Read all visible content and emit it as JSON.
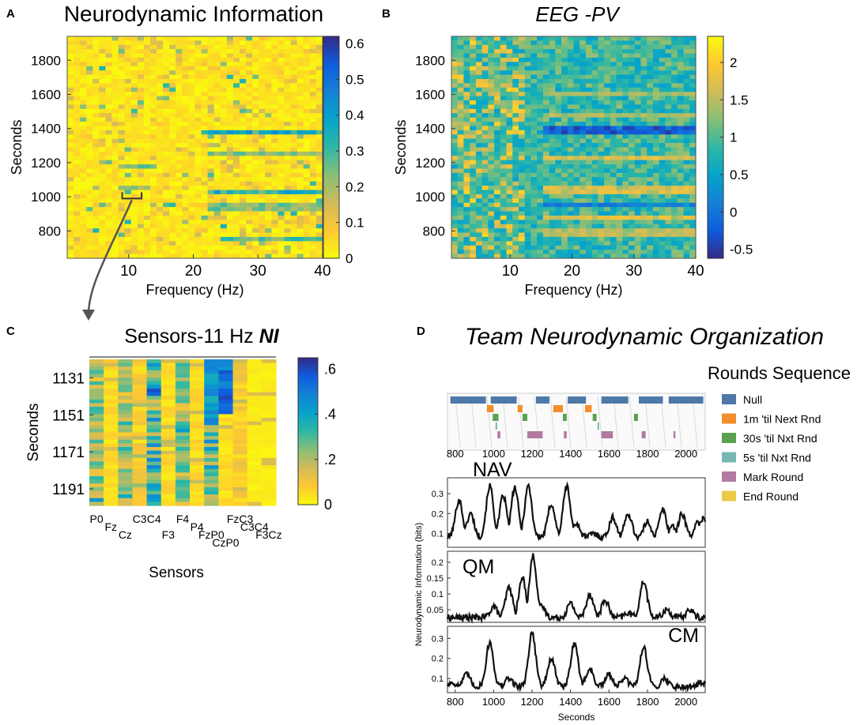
{
  "colors": {
    "parula": [
      "#352a87",
      "#0f5cdd",
      "#1481d6",
      "#06a4ca",
      "#2eb7a4",
      "#87bf77",
      "#d1bb59",
      "#fec832",
      "#f9fb0e"
    ],
    "trace": "#111111",
    "arrow": "#555555"
  },
  "chart_data": [
    {
      "id": "A",
      "panel_letter": "A",
      "type": "heatmap",
      "title": "Neurodynamic Information",
      "xlabel": "Frequency (Hz)",
      "ylabel": "Seconds",
      "xlim": [
        0.5,
        40
      ],
      "ylim": [
        640,
        1940
      ],
      "xticks": [
        10,
        20,
        30,
        40
      ],
      "yticks": [
        800,
        1000,
        1200,
        1400,
        1600,
        1800
      ],
      "colorbar": {
        "range": [
          0,
          0.62
        ],
        "reversed": true,
        "ticks": [
          0,
          0.1,
          0.2,
          0.3,
          0.4,
          0.5,
          0.6
        ],
        "tick_labels": [
          "0",
          "0.1",
          "0.2",
          "0.3",
          "0.4",
          "0.5",
          "0.6"
        ]
      },
      "bands": [
        {
          "y": 1375,
          "x_from": 22,
          "x_to": 40,
          "value": 0.45
        },
        {
          "y": 1255,
          "x_from": 22,
          "x_to": 40,
          "value": 0.28
        },
        {
          "y": 1020,
          "x_from": 22,
          "x_to": 40,
          "value": 0.42
        },
        {
          "y": 940,
          "x_from": 22,
          "x_to": 40,
          "value": 0.3
        },
        {
          "y": 760,
          "x_from": 24,
          "x_to": 40,
          "value": 0.35
        },
        {
          "y": 1185,
          "x_from": 8,
          "x_to": 14,
          "value": 0.3
        },
        {
          "y": 1060,
          "x_from": 8,
          "x_to": 13,
          "value": 0.28
        }
      ],
      "annotation": {
        "bracket_x": [
          9,
          12
        ],
        "bracket_y": 990
      }
    },
    {
      "id": "B",
      "panel_letter": "B",
      "type": "heatmap",
      "title": "EEG -PV",
      "xlabel": "Frequency (Hz)",
      "ylabel": "Seconds",
      "xlim": [
        0.5,
        40
      ],
      "ylim": [
        640,
        1940
      ],
      "xticks": [
        10,
        20,
        30,
        40
      ],
      "yticks": [
        800,
        1000,
        1200,
        1400,
        1600,
        1800
      ],
      "colorbar": {
        "range": [
          -0.62,
          2.35
        ],
        "reversed": false,
        "ticks": [
          -0.5,
          0,
          0.5,
          1,
          1.5,
          2
        ],
        "tick_labels": [
          "-0.5",
          "0",
          "0.5",
          "1",
          "1.5",
          "2"
        ]
      },
      "bands": [
        {
          "y": 1390,
          "value": -0.5
        },
        {
          "y": 1230,
          "value": 1.9
        },
        {
          "y": 1040,
          "value": 1.9
        },
        {
          "y": 960,
          "value": -0.1
        },
        {
          "y": 870,
          "value": 1.9
        },
        {
          "y": 790,
          "value": 1.7
        },
        {
          "y": 1600,
          "value": 1.5
        },
        {
          "y": 1480,
          "value": 1.6
        }
      ]
    },
    {
      "id": "C",
      "panel_letter": "C",
      "type": "heatmap",
      "title_prefix": "Sensors-11 Hz ",
      "title_em": "NI",
      "xlabel": "Sensors",
      "ylabel": "Seconds",
      "ylim": [
        1121,
        1200
      ],
      "yticks": [
        1131,
        1151,
        1171,
        1191
      ],
      "sensors": [
        "P0",
        "Fz",
        "Cz",
        "C3",
        "C4",
        "F3",
        "F4",
        "P4",
        "FzP0",
        "CzP0",
        "FzC3",
        "C3C4",
        "F3Cz"
      ],
      "sensor_label_rows": [
        0,
        1,
        2,
        0,
        0,
        2,
        0,
        1,
        2,
        3,
        0,
        1,
        2
      ],
      "column_means": [
        0.2,
        0.05,
        0.18,
        0.08,
        0.3,
        0.05,
        0.22,
        0.05,
        0.3,
        0.05,
        0.08,
        0.02,
        0.02
      ],
      "hotspot": {
        "column": 9,
        "y_from": 1121,
        "y_to": 1150,
        "value": 0.62
      },
      "colorbar": {
        "range": [
          0,
          0.65
        ],
        "reversed": true,
        "ticks": [
          0,
          0.2,
          0.4,
          0.6
        ],
        "tick_labels": [
          "0",
          ".2",
          ".4",
          ".6"
        ]
      }
    },
    {
      "id": "D",
      "panel_letter": "D",
      "type": "line",
      "title": "Team Neurodynamic Organization",
      "xlabel": "Seconds",
      "ylabel": "Neurodynamic Information (bits)",
      "xlim": [
        760,
        2100
      ],
      "xticks": [
        800,
        1000,
        1200,
        1400,
        1600,
        1800,
        2000
      ],
      "rounds": {
        "title": "Rounds Sequence",
        "xticks": [
          800,
          1000,
          1200,
          1400,
          1600,
          1800,
          2000
        ],
        "legend": [
          {
            "name": "Null",
            "color": "#4e79a7"
          },
          {
            "name": "1m 'til Next Rnd",
            "color": "#f28e2b"
          },
          {
            "name": "30s 'til Nxt Rnd",
            "color": "#59a14f"
          },
          {
            "name": "5s 'til Nxt Rnd",
            "color": "#76b7b2"
          },
          {
            "name": "Mark Round",
            "color": "#b07aa1"
          },
          {
            "name": "End Round",
            "color": "#edc948"
          }
        ],
        "segments": [
          {
            "cat": 0,
            "start": 775,
            "end": 960
          },
          {
            "cat": 0,
            "start": 985,
            "end": 1120
          },
          {
            "cat": 0,
            "start": 1220,
            "end": 1290
          },
          {
            "cat": 0,
            "start": 1385,
            "end": 1480
          },
          {
            "cat": 0,
            "start": 1560,
            "end": 1700
          },
          {
            "cat": 0,
            "start": 1755,
            "end": 1880
          },
          {
            "cat": 0,
            "start": 1910,
            "end": 2090
          },
          {
            "cat": 1,
            "start": 965,
            "end": 1000
          },
          {
            "cat": 1,
            "start": 1125,
            "end": 1150
          },
          {
            "cat": 1,
            "start": 1310,
            "end": 1360
          },
          {
            "cat": 1,
            "start": 1475,
            "end": 1510
          },
          {
            "cat": 2,
            "start": 995,
            "end": 1025
          },
          {
            "cat": 2,
            "start": 1150,
            "end": 1175
          },
          {
            "cat": 2,
            "start": 1360,
            "end": 1380
          },
          {
            "cat": 2,
            "start": 1515,
            "end": 1535
          },
          {
            "cat": 2,
            "start": 1730,
            "end": 1750
          },
          {
            "cat": 3,
            "start": 1010,
            "end": 1018
          },
          {
            "cat": 3,
            "start": 1540,
            "end": 1548
          },
          {
            "cat": 4,
            "start": 1020,
            "end": 1035
          },
          {
            "cat": 4,
            "start": 1175,
            "end": 1255
          },
          {
            "cat": 4,
            "start": 1365,
            "end": 1380
          },
          {
            "cat": 4,
            "start": 1560,
            "end": 1620
          },
          {
            "cat": 4,
            "start": 1770,
            "end": 1790
          },
          {
            "cat": 4,
            "start": 1935,
            "end": 1945
          }
        ]
      },
      "series": [
        {
          "name": "NAV",
          "ylim": [
            0.03,
            0.38
          ],
          "yticks": [
            0.1,
            0.2,
            0.3
          ],
          "ytick_labels": [
            "0.1",
            "0.2",
            "0.3"
          ],
          "baseline": 0.08,
          "peaks": [
            [
              820,
              0.27
            ],
            [
              880,
              0.2
            ],
            [
              980,
              0.34
            ],
            [
              1050,
              0.29
            ],
            [
              1110,
              0.33
            ],
            [
              1180,
              0.34
            ],
            [
              1300,
              0.25
            ],
            [
              1380,
              0.34
            ],
            [
              1430,
              0.15
            ],
            [
              1520,
              0.1
            ],
            [
              1620,
              0.18
            ],
            [
              1700,
              0.2
            ],
            [
              1800,
              0.16
            ],
            [
              1880,
              0.22
            ],
            [
              1930,
              0.14
            ],
            [
              1980,
              0.2
            ],
            [
              2060,
              0.15
            ],
            [
              2090,
              0.18
            ]
          ]
        },
        {
          "name": "QM",
          "ylim": [
            0.01,
            0.235
          ],
          "yticks": [
            0.05,
            0.1,
            0.15,
            0.2
          ],
          "ytick_labels": [
            "0.05",
            "0.1",
            "0.15",
            "0.2"
          ],
          "baseline": 0.025,
          "peaks": [
            [
              1000,
              0.06
            ],
            [
              1080,
              0.12
            ],
            [
              1150,
              0.15
            ],
            [
              1205,
              0.22
            ],
            [
              1250,
              0.06
            ],
            [
              1400,
              0.07
            ],
            [
              1500,
              0.1
            ],
            [
              1580,
              0.08
            ],
            [
              1700,
              0.04
            ],
            [
              1780,
              0.14
            ],
            [
              1900,
              0.05
            ],
            [
              2020,
              0.05
            ]
          ]
        },
        {
          "name": "CM",
          "ylim": [
            0.03,
            0.36
          ],
          "yticks": [
            0.1,
            0.2,
            0.3
          ],
          "ytick_labels": [
            "0.1",
            "0.2",
            "0.3"
          ],
          "baseline": 0.06,
          "peaks": [
            [
              785,
              0.08
            ],
            [
              860,
              0.12
            ],
            [
              980,
              0.28
            ],
            [
              1080,
              0.1
            ],
            [
              1200,
              0.33
            ],
            [
              1300,
              0.2
            ],
            [
              1420,
              0.28
            ],
            [
              1500,
              0.15
            ],
            [
              1600,
              0.12
            ],
            [
              1680,
              0.1
            ],
            [
              1780,
              0.26
            ],
            [
              1890,
              0.1
            ],
            [
              2000,
              0.06
            ],
            [
              2080,
              0.08
            ]
          ]
        }
      ]
    }
  ]
}
